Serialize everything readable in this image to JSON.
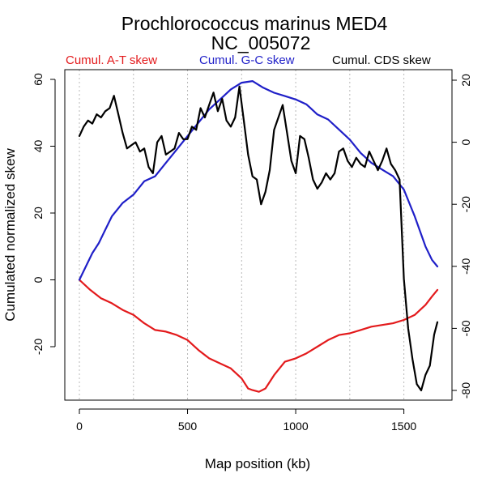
{
  "chart_data": {
    "type": "line",
    "title": "Prochlorococcus marinus MED4",
    "subtitle": "NC_005072",
    "xlabel": "Map position (kb)",
    "ylabel": "Cumulated normalized skew",
    "xlim": [
      0,
      1660
    ],
    "ylim_left": [
      -35,
      62
    ],
    "ylim_right": [
      -82,
      25
    ],
    "x_ticks": [
      0,
      500,
      1000,
      1500
    ],
    "x_tick_labels": [
      "0",
      "500",
      "1000",
      "1500"
    ],
    "y_left_ticks": [
      60,
      40,
      20,
      0,
      -20
    ],
    "y_left_tick_labels": [
      "60",
      "40",
      "20",
      "0",
      "-20"
    ],
    "y_right_ticks": [
      20,
      0,
      -20,
      -40,
      -60,
      -80
    ],
    "y_right_tick_labels": [
      "20",
      "0",
      "-20",
      "-40",
      "-60",
      "-80"
    ],
    "grid_x": [
      0,
      250,
      500,
      750,
      1000,
      1250,
      1500
    ],
    "legend": [
      {
        "label": "Cumul. A-T skew",
        "color": "#e31a1c"
      },
      {
        "label": "Cumul. G-C skew",
        "color": "#1f1fc8"
      },
      {
        "label": "Cumul. CDS skew",
        "color": "#000000"
      }
    ],
    "series": [
      {
        "name": "Cumul. A-T skew",
        "color": "#e31a1c",
        "axis": "left",
        "x": [
          0,
          50,
          100,
          150,
          200,
          250,
          300,
          350,
          400,
          450,
          500,
          550,
          600,
          650,
          700,
          750,
          780,
          800,
          830,
          860,
          900,
          950,
          1000,
          1050,
          1100,
          1150,
          1200,
          1250,
          1300,
          1350,
          1400,
          1450,
          1500,
          1550,
          1600,
          1630,
          1655
        ],
        "values": [
          0,
          -3,
          -5.5,
          -7,
          -9,
          -10.5,
          -13,
          -15,
          -15.5,
          -16.5,
          -18,
          -21,
          -23.5,
          -25,
          -26.5,
          -29.5,
          -32.5,
          -33,
          -33.5,
          -32.5,
          -28.5,
          -24.5,
          -23.5,
          -22,
          -20,
          -18,
          -16.5,
          -16,
          -15,
          -14,
          -13.5,
          -13,
          -12,
          -10.5,
          -7.5,
          -5,
          -3
        ]
      },
      {
        "name": "Cumul. G-C skew",
        "color": "#1f1fc8",
        "axis": "left",
        "x": [
          0,
          30,
          60,
          90,
          120,
          150,
          200,
          250,
          300,
          350,
          400,
          450,
          500,
          550,
          600,
          650,
          700,
          750,
          800,
          850,
          900,
          950,
          1000,
          1050,
          1100,
          1150,
          1200,
          1250,
          1300,
          1350,
          1400,
          1450,
          1500,
          1550,
          1600,
          1630,
          1655
        ],
        "values": [
          0,
          4,
          8,
          11,
          15,
          19,
          23,
          25.5,
          29.5,
          31,
          35,
          39,
          43,
          47,
          51,
          54,
          57,
          59,
          59.5,
          57.5,
          56,
          55,
          54,
          52.5,
          49.5,
          48,
          45,
          42,
          38,
          35,
          33,
          31,
          27,
          19,
          10,
          6,
          4
        ]
      },
      {
        "name": "Cumul. CDS skew",
        "color": "#000000",
        "axis": "right",
        "x": [
          0,
          20,
          40,
          60,
          80,
          100,
          120,
          140,
          160,
          180,
          200,
          220,
          240,
          260,
          280,
          300,
          320,
          340,
          360,
          380,
          400,
          420,
          440,
          460,
          480,
          500,
          520,
          540,
          560,
          580,
          600,
          620,
          640,
          660,
          680,
          700,
          720,
          740,
          760,
          780,
          800,
          820,
          840,
          860,
          880,
          900,
          920,
          940,
          960,
          980,
          1000,
          1020,
          1040,
          1060,
          1080,
          1100,
          1120,
          1140,
          1160,
          1180,
          1200,
          1220,
          1240,
          1260,
          1280,
          1300,
          1320,
          1340,
          1360,
          1380,
          1400,
          1420,
          1440,
          1460,
          1480,
          1500,
          1520,
          1540,
          1560,
          1580,
          1600,
          1620,
          1640,
          1655
        ],
        "values": [
          2,
          5,
          7,
          6,
          9,
          8,
          10,
          11,
          15,
          9,
          3,
          -2,
          -1,
          0,
          -3,
          -2,
          -8,
          -10,
          0,
          2,
          -4,
          -3,
          -2,
          3,
          1,
          1,
          5,
          4,
          11,
          8,
          12,
          16,
          10,
          14,
          7,
          5,
          8,
          18,
          7,
          -4,
          -11,
          -12,
          -20,
          -16,
          -9,
          4,
          8,
          12,
          3,
          -6,
          -10,
          2,
          1,
          -5,
          -12,
          -15,
          -13,
          -10,
          -12,
          -10,
          -3,
          -2,
          -6,
          -8,
          -5,
          -7,
          -8,
          -3,
          -6,
          -9,
          -6,
          -2,
          -7,
          -9,
          -12,
          -44,
          -60,
          -70,
          -78,
          -80,
          -75,
          -72,
          -62,
          -58
        ]
      }
    ]
  }
}
